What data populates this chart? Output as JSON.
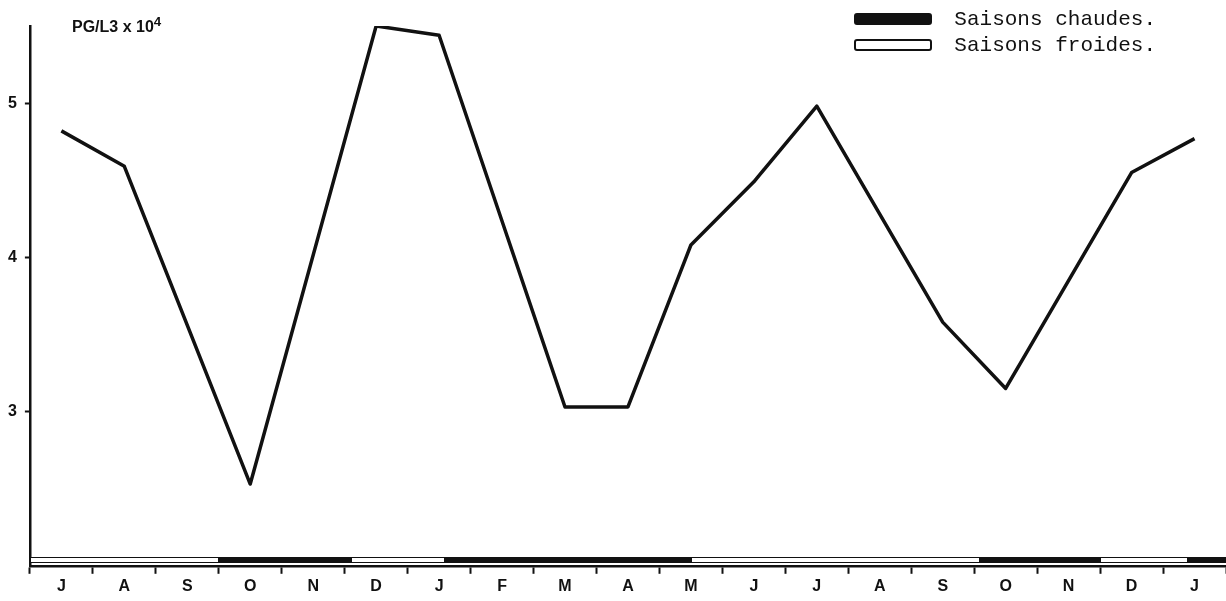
{
  "chart_data": {
    "type": "line",
    "ylabel": "PG/L3 x 10$^{4}$",
    "annotations": [
      "Saisons chaudes.",
      "Saisons froides."
    ],
    "categories": [
      "J",
      "A",
      "S",
      "O",
      "N",
      "D",
      "J",
      "F",
      "M",
      "A",
      "M",
      "J",
      "J",
      "A",
      "S",
      "O",
      "N",
      "D",
      "J"
    ],
    "values": [
      4.82,
      4.59,
      null,
      2.53,
      null,
      5.5,
      5.44,
      null,
      3.03,
      3.03,
      4.08,
      4.49,
      4.98,
      null,
      3.58,
      3.15,
      null,
      4.55,
      4.77
    ],
    "color": "#111111",
    "marker": "none",
    "line_style": "solid",
    "grid": false,
    "ylim": [
      2,
      5.5
    ],
    "yticks": [
      3,
      4,
      5
    ]
  }
}
